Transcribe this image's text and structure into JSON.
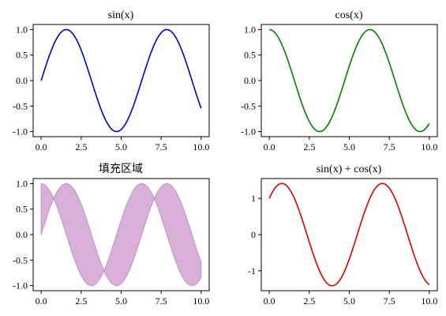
{
  "chart_data": [
    {
      "type": "line",
      "title": "sin(x)",
      "function": "sin",
      "x_range": [
        0,
        10
      ],
      "series": [
        {
          "color": "#0000cc"
        }
      ],
      "xlim": [
        -0.5,
        10.5
      ],
      "ylim": [
        -1.1,
        1.1
      ],
      "xticks": [
        0,
        2.5,
        5,
        7.5,
        10
      ],
      "xtick_labels": [
        "0.0",
        "2.5",
        "5.0",
        "7.5",
        "10.0"
      ],
      "yticks": [
        1,
        0.5,
        0,
        -0.5,
        -1
      ],
      "ytick_labels": [
        "1.0",
        "0.5",
        "0.0",
        "-0.5",
        "-1.0"
      ]
    },
    {
      "type": "line",
      "title": "cos(x)",
      "function": "cos",
      "x_range": [
        0,
        10
      ],
      "series": [
        {
          "color": "#008000"
        }
      ],
      "xlim": [
        -0.5,
        10.5
      ],
      "ylim": [
        -1.1,
        1.1
      ],
      "xticks": [
        0,
        2.5,
        5,
        7.5,
        10
      ],
      "xtick_labels": [
        "0.0",
        "2.5",
        "5.0",
        "7.5",
        "10.0"
      ],
      "yticks": [
        1,
        0.5,
        0,
        -0.5,
        -1
      ],
      "ytick_labels": [
        "1.0",
        "0.5",
        "0.0",
        "-0.5",
        "-1.0"
      ]
    },
    {
      "type": "area",
      "title": "填充区域",
      "function": "fill_between_sin_cos",
      "x_range": [
        0,
        10
      ],
      "series": [
        {
          "color": "#d8b0d8",
          "edge_color": "#c090c8"
        }
      ],
      "xlim": [
        -0.5,
        10.5
      ],
      "ylim": [
        -1.1,
        1.1
      ],
      "xticks": [
        0,
        2.5,
        5,
        7.5,
        10
      ],
      "xtick_labels": [
        "0.0",
        "2.5",
        "5.0",
        "7.5",
        "10.0"
      ],
      "yticks": [
        1,
        0.5,
        0,
        -0.5,
        -1
      ],
      "ytick_labels": [
        "1.0",
        "0.5",
        "0.0",
        "-0.5",
        "-1.0"
      ]
    },
    {
      "type": "line",
      "title": "sin(x) + cos(x)",
      "function": "sin_plus_cos",
      "x_range": [
        0,
        10
      ],
      "series": [
        {
          "color": "#dd0000"
        }
      ],
      "xlim": [
        -0.5,
        10.5
      ],
      "ylim": [
        -1.55,
        1.55
      ],
      "xticks": [
        0,
        2.5,
        5,
        7.5,
        10
      ],
      "xtick_labels": [
        "0.0",
        "2.5",
        "5.0",
        "7.5",
        "10.0"
      ],
      "yticks": [
        1,
        0,
        -1
      ],
      "ytick_labels": [
        "1",
        "0",
        "-1"
      ]
    }
  ]
}
